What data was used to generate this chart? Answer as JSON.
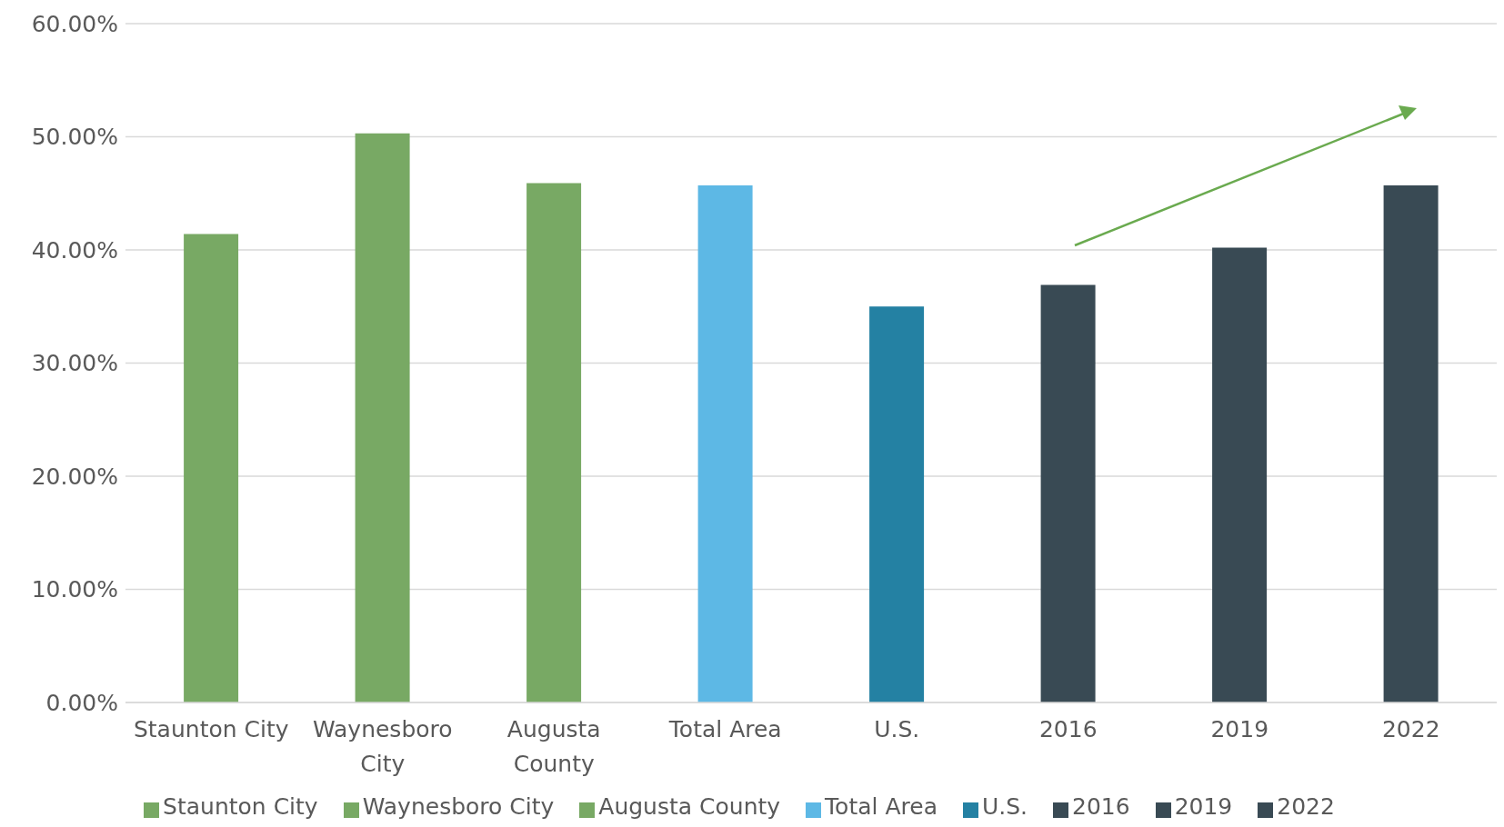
{
  "chart_data": {
    "type": "bar",
    "categories": [
      "Staunton City",
      "Waynesboro City",
      "Augusta County",
      "Total Area",
      "U.S.",
      "2016",
      "2019",
      "2022"
    ],
    "series": [
      {
        "name": "Staunton City",
        "color": "#78a964",
        "values": [
          41.4,
          null,
          null,
          null,
          null,
          null,
          null,
          null
        ]
      },
      {
        "name": "Waynesboro City",
        "color": "#78a964",
        "values": [
          null,
          50.3,
          null,
          null,
          null,
          null,
          null,
          null
        ]
      },
      {
        "name": "Augusta County",
        "color": "#78a964",
        "values": [
          null,
          null,
          45.9,
          null,
          null,
          null,
          null,
          null
        ]
      },
      {
        "name": "Total Area",
        "color": "#5db8e5",
        "values": [
          null,
          null,
          null,
          45.7,
          null,
          null,
          null,
          null
        ]
      },
      {
        "name": "U.S.",
        "color": "#2481a3",
        "values": [
          null,
          null,
          null,
          null,
          35.0,
          null,
          null,
          null
        ]
      },
      {
        "name": "2016",
        "color": "#394a54",
        "values": [
          null,
          null,
          null,
          null,
          null,
          36.9,
          null,
          null
        ]
      },
      {
        "name": "2019",
        "color": "#394a54",
        "values": [
          null,
          null,
          null,
          null,
          null,
          null,
          40.2,
          null
        ]
      },
      {
        "name": "2022",
        "color": "#394a54",
        "values": [
          null,
          null,
          null,
          null,
          null,
          null,
          null,
          45.7
        ]
      }
    ],
    "stacked": true,
    "ylim": [
      0,
      60
    ],
    "yticks": [
      {
        "value": 0,
        "label": "0.00%"
      },
      {
        "value": 10,
        "label": "10.00%"
      },
      {
        "value": 20,
        "label": "20.00%"
      },
      {
        "value": 30,
        "label": "30.00%"
      },
      {
        "value": 40,
        "label": "40.00%"
      },
      {
        "value": 50,
        "label": "50.00%"
      },
      {
        "value": 60,
        "label": "60.00%"
      }
    ],
    "grid": "y",
    "legend": "bottom"
  }
}
